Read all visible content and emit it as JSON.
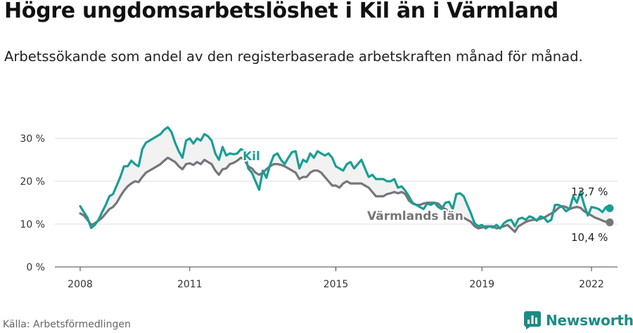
{
  "title": "Högre ungdomsarbetslöshet i Kil än i Värmland",
  "subtitle": "Arbetssökande som andel av den registerbaserade arbetskraften månad för månad.",
  "source": "Källa: Arbetsförmedlingen",
  "brand": "Newsworthy",
  "colors": {
    "kil": "#1a9e93",
    "varmland": "#77757a",
    "fill": "#f2f2f2",
    "grid": "#dedede",
    "axis": "#444444",
    "brand": "#1b8c84"
  },
  "chart_data": {
    "type": "line",
    "xlim": [
      2008.0,
      2022.8
    ],
    "ylim": [
      0,
      33
    ],
    "ylabel": "",
    "xlabel": "",
    "y_ticks": [
      {
        "value": 0,
        "label": "0 %"
      },
      {
        "value": 10,
        "label": "10 %"
      },
      {
        "value": 20,
        "label": "20 %"
      },
      {
        "value": 30,
        "label": "30 %"
      }
    ],
    "x_ticks": [
      {
        "value": 2008,
        "label": "2008"
      },
      {
        "value": 2011,
        "label": "2011"
      },
      {
        "value": 2015,
        "label": "2015"
      },
      {
        "value": 2019,
        "label": "2019"
      },
      {
        "value": 2022,
        "label": "2022"
      }
    ],
    "grid": true,
    "series": [
      {
        "name": "Kil",
        "end_label": "13,7 %",
        "points": [
          [
            2008.0,
            14.2
          ],
          [
            2008.1,
            12.8
          ],
          [
            2008.2,
            11.5
          ],
          [
            2008.3,
            9.1
          ],
          [
            2008.4,
            9.8
          ],
          [
            2008.5,
            11.0
          ],
          [
            2008.6,
            12.8
          ],
          [
            2008.7,
            14.5
          ],
          [
            2008.8,
            16.5
          ],
          [
            2008.9,
            17.0
          ],
          [
            2009.0,
            19.0
          ],
          [
            2009.1,
            21.0
          ],
          [
            2009.2,
            23.5
          ],
          [
            2009.3,
            23.5
          ],
          [
            2009.4,
            24.8
          ],
          [
            2009.5,
            24.0
          ],
          [
            2009.6,
            23.5
          ],
          [
            2009.7,
            27.5
          ],
          [
            2009.8,
            29.0
          ],
          [
            2009.9,
            29.5
          ],
          [
            2010.0,
            30.0
          ],
          [
            2010.1,
            30.5
          ],
          [
            2010.2,
            31.0
          ],
          [
            2010.3,
            32.0
          ],
          [
            2010.4,
            32.6
          ],
          [
            2010.5,
            31.5
          ],
          [
            2010.6,
            29.0
          ],
          [
            2010.7,
            27.0
          ],
          [
            2010.8,
            25.5
          ],
          [
            2010.9,
            29.5
          ],
          [
            2011.0,
            30.0
          ],
          [
            2011.1,
            28.8
          ],
          [
            2011.2,
            30.0
          ],
          [
            2011.3,
            29.5
          ],
          [
            2011.4,
            31.0
          ],
          [
            2011.5,
            30.5
          ],
          [
            2011.6,
            29.5
          ],
          [
            2011.7,
            26.5
          ],
          [
            2011.8,
            25.0
          ],
          [
            2011.9,
            28.0
          ],
          [
            2012.0,
            26.0
          ],
          [
            2012.1,
            26.5
          ],
          [
            2012.2,
            26.3
          ],
          [
            2012.3,
            26.5
          ],
          [
            2012.4,
            27.5
          ],
          [
            2012.5,
            27.0
          ],
          [
            2012.6,
            23.0
          ],
          [
            2012.7,
            22.0
          ],
          [
            2012.8,
            20.0
          ],
          [
            2012.9,
            18.0
          ],
          [
            2013.0,
            22.5
          ],
          [
            2013.1,
            20.8
          ],
          [
            2013.2,
            23.8
          ],
          [
            2013.3,
            26.0
          ],
          [
            2013.4,
            26.5
          ],
          [
            2013.5,
            25.0
          ],
          [
            2013.6,
            24.0
          ],
          [
            2013.7,
            25.5
          ],
          [
            2013.8,
            26.8
          ],
          [
            2013.9,
            27.0
          ],
          [
            2014.0,
            23.0
          ],
          [
            2014.1,
            25.0
          ],
          [
            2014.2,
            24.5
          ],
          [
            2014.3,
            26.5
          ],
          [
            2014.4,
            25.5
          ],
          [
            2014.5,
            27.0
          ],
          [
            2014.6,
            26.5
          ],
          [
            2014.7,
            26.0
          ],
          [
            2014.8,
            26.5
          ],
          [
            2014.9,
            25.5
          ],
          [
            2015.0,
            23.5
          ],
          [
            2015.1,
            23.0
          ],
          [
            2015.2,
            22.5
          ],
          [
            2015.3,
            24.0
          ],
          [
            2015.4,
            24.5
          ],
          [
            2015.5,
            23.0
          ],
          [
            2015.6,
            24.0
          ],
          [
            2015.7,
            25.0
          ],
          [
            2015.8,
            23.0
          ],
          [
            2015.9,
            21.0
          ],
          [
            2016.0,
            21.5
          ],
          [
            2016.1,
            20.5
          ],
          [
            2016.2,
            20.5
          ],
          [
            2016.3,
            20.5
          ],
          [
            2016.4,
            20.0
          ],
          [
            2016.5,
            20.0
          ],
          [
            2016.6,
            20.5
          ],
          [
            2016.7,
            18.5
          ],
          [
            2016.8,
            18.8
          ],
          [
            2016.9,
            17.8
          ],
          [
            2017.0,
            16.5
          ],
          [
            2017.1,
            15.0
          ],
          [
            2017.2,
            14.5
          ],
          [
            2017.3,
            14.0
          ],
          [
            2017.4,
            13.5
          ],
          [
            2017.5,
            14.8
          ],
          [
            2017.6,
            14.5
          ],
          [
            2017.7,
            15.0
          ],
          [
            2017.8,
            14.0
          ],
          [
            2017.9,
            13.5
          ],
          [
            2018.0,
            15.0
          ],
          [
            2018.1,
            15.2
          ],
          [
            2018.2,
            13.5
          ],
          [
            2018.3,
            17.0
          ],
          [
            2018.4,
            17.2
          ],
          [
            2018.5,
            16.5
          ],
          [
            2018.6,
            14.5
          ],
          [
            2018.7,
            12.5
          ],
          [
            2018.8,
            10.2
          ],
          [
            2018.9,
            9.5
          ],
          [
            2019.0,
            9.8
          ],
          [
            2019.1,
            9.0
          ],
          [
            2019.2,
            9.5
          ],
          [
            2019.3,
            9.2
          ],
          [
            2019.4,
            9.8
          ],
          [
            2019.5,
            9.0
          ],
          [
            2019.6,
            10.2
          ],
          [
            2019.7,
            10.8
          ],
          [
            2019.8,
            11.0
          ],
          [
            2019.9,
            9.5
          ],
          [
            2020.0,
            11.2
          ],
          [
            2020.1,
            11.5
          ],
          [
            2020.2,
            11.0
          ],
          [
            2020.3,
            11.8
          ],
          [
            2020.4,
            11.5
          ],
          [
            2020.5,
            10.8
          ],
          [
            2020.6,
            11.8
          ],
          [
            2020.7,
            11.5
          ],
          [
            2020.8,
            10.5
          ],
          [
            2020.9,
            11.0
          ],
          [
            2021.0,
            14.5
          ],
          [
            2021.1,
            14.5
          ],
          [
            2021.2,
            14.0
          ],
          [
            2021.3,
            13.0
          ],
          [
            2021.4,
            13.5
          ],
          [
            2021.5,
            16.5
          ],
          [
            2021.6,
            15.0
          ],
          [
            2021.7,
            17.5
          ],
          [
            2021.8,
            14.5
          ],
          [
            2021.9,
            12.0
          ],
          [
            2022.0,
            14.0
          ],
          [
            2022.1,
            13.8
          ],
          [
            2022.2,
            13.5
          ],
          [
            2022.3,
            12.8
          ],
          [
            2022.4,
            14.0
          ],
          [
            2022.5,
            13.7
          ]
        ]
      },
      {
        "name": "Värmlands län",
        "end_label": "10,4 %",
        "points": [
          [
            2008.0,
            12.5
          ],
          [
            2008.1,
            12.0
          ],
          [
            2008.2,
            11.0
          ],
          [
            2008.3,
            9.8
          ],
          [
            2008.4,
            10.2
          ],
          [
            2008.5,
            10.8
          ],
          [
            2008.6,
            11.5
          ],
          [
            2008.7,
            12.5
          ],
          [
            2008.8,
            13.5
          ],
          [
            2008.9,
            14.0
          ],
          [
            2009.0,
            15.0
          ],
          [
            2009.1,
            16.5
          ],
          [
            2009.2,
            17.8
          ],
          [
            2009.3,
            18.8
          ],
          [
            2009.4,
            19.5
          ],
          [
            2009.5,
            20.0
          ],
          [
            2009.6,
            19.8
          ],
          [
            2009.7,
            21.0
          ],
          [
            2009.8,
            22.0
          ],
          [
            2009.9,
            22.5
          ],
          [
            2010.0,
            23.0
          ],
          [
            2010.1,
            23.5
          ],
          [
            2010.2,
            24.0
          ],
          [
            2010.3,
            24.8
          ],
          [
            2010.4,
            25.5
          ],
          [
            2010.5,
            25.0
          ],
          [
            2010.6,
            24.5
          ],
          [
            2010.7,
            23.5
          ],
          [
            2010.8,
            22.8
          ],
          [
            2010.9,
            24.0
          ],
          [
            2011.0,
            24.2
          ],
          [
            2011.1,
            23.8
          ],
          [
            2011.2,
            24.5
          ],
          [
            2011.3,
            24.0
          ],
          [
            2011.4,
            25.0
          ],
          [
            2011.5,
            24.5
          ],
          [
            2011.6,
            24.0
          ],
          [
            2011.7,
            22.5
          ],
          [
            2011.8,
            21.5
          ],
          [
            2011.9,
            22.8
          ],
          [
            2012.0,
            23.0
          ],
          [
            2012.1,
            24.0
          ],
          [
            2012.2,
            24.3
          ],
          [
            2012.3,
            24.8
          ],
          [
            2012.4,
            25.5
          ],
          [
            2012.5,
            25.0
          ],
          [
            2012.6,
            23.5
          ],
          [
            2012.7,
            23.0
          ],
          [
            2012.8,
            22.0
          ],
          [
            2012.9,
            21.5
          ],
          [
            2013.0,
            22.0
          ],
          [
            2013.1,
            22.8
          ],
          [
            2013.2,
            23.5
          ],
          [
            2013.3,
            24.0
          ],
          [
            2013.4,
            24.0
          ],
          [
            2013.5,
            23.8
          ],
          [
            2013.6,
            23.5
          ],
          [
            2013.7,
            23.0
          ],
          [
            2013.8,
            22.5
          ],
          [
            2013.9,
            22.0
          ],
          [
            2014.0,
            20.5
          ],
          [
            2014.1,
            21.0
          ],
          [
            2014.2,
            21.0
          ],
          [
            2014.3,
            22.0
          ],
          [
            2014.4,
            22.5
          ],
          [
            2014.5,
            22.5
          ],
          [
            2014.6,
            22.0
          ],
          [
            2014.7,
            21.0
          ],
          [
            2014.8,
            20.0
          ],
          [
            2014.9,
            19.0
          ],
          [
            2015.0,
            19.0
          ],
          [
            2015.1,
            18.5
          ],
          [
            2015.2,
            19.5
          ],
          [
            2015.3,
            20.0
          ],
          [
            2015.4,
            19.5
          ],
          [
            2015.5,
            19.5
          ],
          [
            2015.6,
            19.5
          ],
          [
            2015.7,
            19.5
          ],
          [
            2015.8,
            19.0
          ],
          [
            2015.9,
            18.5
          ],
          [
            2016.0,
            17.5
          ],
          [
            2016.1,
            16.5
          ],
          [
            2016.2,
            16.5
          ],
          [
            2016.3,
            16.5
          ],
          [
            2016.4,
            17.0
          ],
          [
            2016.5,
            17.2
          ],
          [
            2016.6,
            17.5
          ],
          [
            2016.7,
            17.2
          ],
          [
            2016.8,
            17.5
          ],
          [
            2016.9,
            17.0
          ],
          [
            2017.0,
            15.5
          ],
          [
            2017.1,
            14.8
          ],
          [
            2017.2,
            14.5
          ],
          [
            2017.3,
            14.5
          ],
          [
            2017.4,
            14.8
          ],
          [
            2017.5,
            15.0
          ],
          [
            2017.6,
            15.0
          ],
          [
            2017.7,
            15.0
          ],
          [
            2017.8,
            14.8
          ],
          [
            2017.9,
            14.0
          ],
          [
            2018.0,
            13.5
          ],
          [
            2018.1,
            13.0
          ],
          [
            2018.2,
            12.5
          ],
          [
            2018.3,
            12.5
          ],
          [
            2018.4,
            12.0
          ],
          [
            2018.5,
            11.5
          ],
          [
            2018.6,
            11.0
          ],
          [
            2018.7,
            10.5
          ],
          [
            2018.8,
            9.5
          ],
          [
            2018.9,
            9.0
          ],
          [
            2019.0,
            9.2
          ],
          [
            2019.1,
            9.5
          ],
          [
            2019.2,
            9.5
          ],
          [
            2019.3,
            9.5
          ],
          [
            2019.4,
            9.0
          ],
          [
            2019.5,
            9.2
          ],
          [
            2019.6,
            9.5
          ],
          [
            2019.7,
            9.8
          ],
          [
            2019.8,
            9.0
          ],
          [
            2019.9,
            8.2
          ],
          [
            2020.0,
            9.5
          ],
          [
            2020.1,
            10.0
          ],
          [
            2020.2,
            10.5
          ],
          [
            2020.3,
            10.8
          ],
          [
            2020.4,
            11.0
          ],
          [
            2020.5,
            11.0
          ],
          [
            2020.6,
            11.2
          ],
          [
            2020.7,
            11.5
          ],
          [
            2020.8,
            12.0
          ],
          [
            2020.9,
            12.5
          ],
          [
            2021.0,
            13.0
          ],
          [
            2021.1,
            13.8
          ],
          [
            2021.2,
            14.2
          ],
          [
            2021.3,
            14.0
          ],
          [
            2021.4,
            13.5
          ],
          [
            2021.5,
            13.8
          ],
          [
            2021.6,
            14.0
          ],
          [
            2021.7,
            13.8
          ],
          [
            2021.8,
            13.0
          ],
          [
            2021.9,
            12.5
          ],
          [
            2022.0,
            12.0
          ],
          [
            2022.1,
            11.5
          ],
          [
            2022.2,
            11.2
          ],
          [
            2022.3,
            10.8
          ],
          [
            2022.4,
            10.5
          ],
          [
            2022.5,
            10.4
          ]
        ]
      }
    ]
  }
}
